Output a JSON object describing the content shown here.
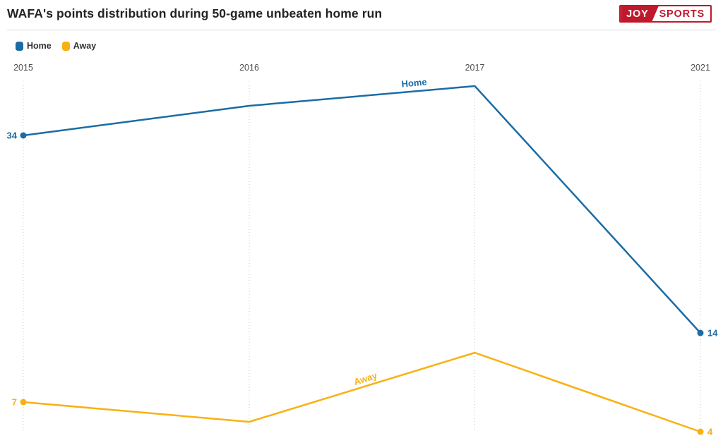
{
  "header": {
    "title": "WAFA's points distribution during 50-game unbeaten home run",
    "logo": {
      "joy": "JOY",
      "sports": "SPORTS"
    }
  },
  "legend": {
    "items": [
      {
        "label": "Home",
        "color": "#1B6CA4"
      },
      {
        "label": "Away",
        "color": "#F8B112"
      }
    ]
  },
  "chart_data": {
    "type": "line",
    "title": "WAFA's points distribution during 50-game unbeaten home run",
    "categories": [
      "2015",
      "2016",
      "2017",
      "2021"
    ],
    "series": [
      {
        "name": "Home",
        "color": "#1B6CA4",
        "values": [
          34,
          37,
          39,
          14
        ]
      },
      {
        "name": "Away",
        "color": "#F8B112",
        "values": [
          7,
          5,
          12,
          4
        ]
      }
    ],
    "xlabel": "",
    "ylabel": "",
    "x_axis_position": "top",
    "grid": "vertical dotted gridline at each category",
    "legend_position": "top-left",
    "value_labels": "first and last point of each series only",
    "ylim_visible": [
      4,
      39
    ]
  },
  "colors": {
    "home": "#1B6CA4",
    "away": "#F8B112",
    "logo_red": "#C0182C",
    "grid": "#c9c9c9",
    "tick_text": "#4d4d4d",
    "title_text": "#232323",
    "divider": "#d9d9d9"
  }
}
